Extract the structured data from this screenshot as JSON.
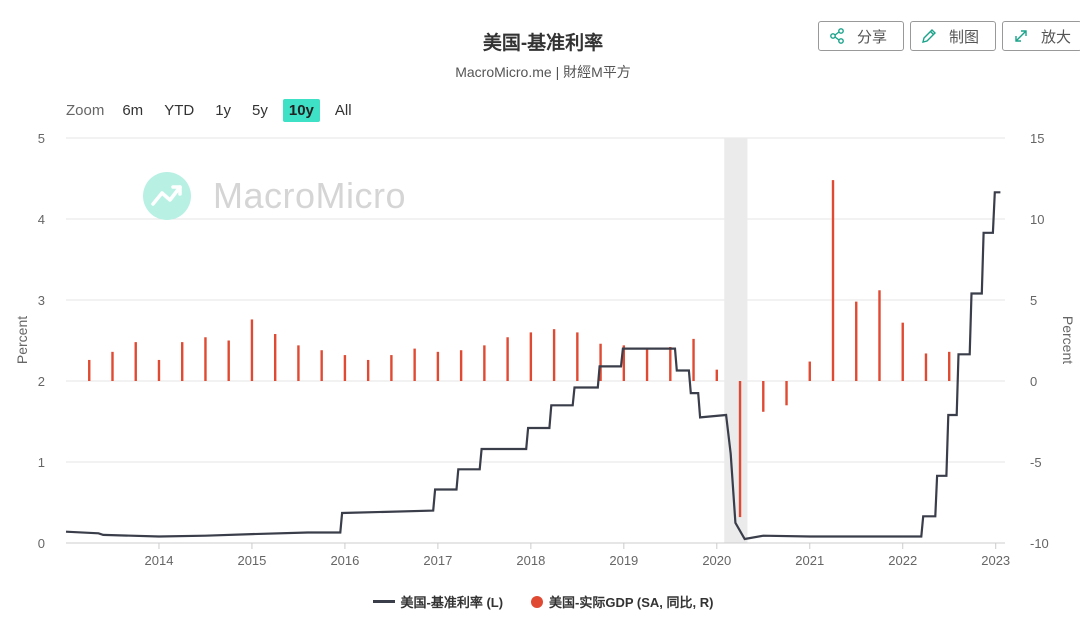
{
  "header": {
    "title": "美国-基准利率",
    "subtitle": "MacroMicro.me | 財經M平方"
  },
  "toolbar": {
    "share_label": "分享",
    "draw_label": "制图",
    "zoom_label": "放大"
  },
  "range_selector": {
    "label": "Zoom",
    "options": [
      "6m",
      "YTD",
      "1y",
      "5y",
      "10y",
      "All"
    ],
    "active": "10y"
  },
  "watermark": {
    "text": "MacroMicro"
  },
  "legend": {
    "rate_label": "美国-基准利率 (L)",
    "gdp_label": "美国-实际GDP (SA, 同比, R)"
  },
  "colors": {
    "rate_line": "#3a3d4a",
    "gdp_bar": "#e04a32",
    "active_range": "#3ee0c6",
    "recession_band": "#ebebeb"
  },
  "chart_data": {
    "type": "line",
    "x_range": [
      2013.0,
      2023.1
    ],
    "x_ticks": [
      "2014",
      "2015",
      "2016",
      "2017",
      "2018",
      "2019",
      "2020",
      "2021",
      "2022",
      "2023"
    ],
    "y_left": {
      "label": "Percent",
      "ylim": [
        0,
        5
      ],
      "ticks": [
        "0",
        "1",
        "2",
        "3",
        "4",
        "5"
      ]
    },
    "y_right": {
      "label": "Percent",
      "ylim": [
        -10,
        15
      ],
      "ticks": [
        "-10",
        "-5",
        "0",
        "5",
        "10",
        "15"
      ]
    },
    "grid": true,
    "recession_shading": {
      "start": 2020.08,
      "end": 2020.33
    },
    "series": [
      {
        "name": "美国-基准利率 (L)",
        "type": "step-line",
        "axis": "left",
        "points": [
          [
            2013.0,
            0.14
          ],
          [
            2013.35,
            0.12
          ],
          [
            2013.4,
            0.1
          ],
          [
            2014.0,
            0.08
          ],
          [
            2014.5,
            0.09
          ],
          [
            2015.0,
            0.11
          ],
          [
            2015.6,
            0.13
          ],
          [
            2015.95,
            0.13
          ],
          [
            2015.97,
            0.37
          ],
          [
            2016.95,
            0.4
          ],
          [
            2016.97,
            0.66
          ],
          [
            2017.2,
            0.66
          ],
          [
            2017.22,
            0.91
          ],
          [
            2017.45,
            0.91
          ],
          [
            2017.47,
            1.16
          ],
          [
            2017.95,
            1.16
          ],
          [
            2017.97,
            1.42
          ],
          [
            2018.2,
            1.42
          ],
          [
            2018.22,
            1.7
          ],
          [
            2018.45,
            1.7
          ],
          [
            2018.47,
            1.92
          ],
          [
            2018.72,
            1.92
          ],
          [
            2018.74,
            2.18
          ],
          [
            2018.97,
            2.18
          ],
          [
            2018.99,
            2.4
          ],
          [
            2019.55,
            2.4
          ],
          [
            2019.57,
            2.13
          ],
          [
            2019.7,
            2.13
          ],
          [
            2019.72,
            1.85
          ],
          [
            2019.8,
            1.85
          ],
          [
            2019.82,
            1.55
          ],
          [
            2020.1,
            1.58
          ],
          [
            2020.15,
            1.1
          ],
          [
            2020.2,
            0.25
          ],
          [
            2020.3,
            0.05
          ],
          [
            2020.5,
            0.09
          ],
          [
            2021.0,
            0.08
          ],
          [
            2021.5,
            0.08
          ],
          [
            2022.2,
            0.08
          ],
          [
            2022.22,
            0.33
          ],
          [
            2022.35,
            0.33
          ],
          [
            2022.37,
            0.83
          ],
          [
            2022.47,
            0.83
          ],
          [
            2022.49,
            1.58
          ],
          [
            2022.58,
            1.58
          ],
          [
            2022.6,
            2.33
          ],
          [
            2022.72,
            2.33
          ],
          [
            2022.74,
            3.08
          ],
          [
            2022.85,
            3.08
          ],
          [
            2022.87,
            3.83
          ],
          [
            2022.97,
            3.83
          ],
          [
            2022.99,
            4.33
          ],
          [
            2023.05,
            4.33
          ]
        ]
      },
      {
        "name": "美国-实际GDP (SA, 同比, R)",
        "type": "bar",
        "axis": "right",
        "points": [
          [
            2013.25,
            1.3
          ],
          [
            2013.5,
            1.8
          ],
          [
            2013.75,
            2.4
          ],
          [
            2014.0,
            1.3
          ],
          [
            2014.25,
            2.4
          ],
          [
            2014.5,
            2.7
          ],
          [
            2014.75,
            2.5
          ],
          [
            2015.0,
            3.8
          ],
          [
            2015.25,
            2.9
          ],
          [
            2015.5,
            2.2
          ],
          [
            2015.75,
            1.9
          ],
          [
            2016.0,
            1.6
          ],
          [
            2016.25,
            1.3
          ],
          [
            2016.5,
            1.6
          ],
          [
            2016.75,
            2.0
          ],
          [
            2017.0,
            1.8
          ],
          [
            2017.25,
            1.9
          ],
          [
            2017.5,
            2.2
          ],
          [
            2017.75,
            2.7
          ],
          [
            2018.0,
            3.0
          ],
          [
            2018.25,
            3.2
          ],
          [
            2018.5,
            3.0
          ],
          [
            2018.75,
            2.3
          ],
          [
            2019.0,
            2.2
          ],
          [
            2019.25,
            2.0
          ],
          [
            2019.5,
            2.1
          ],
          [
            2019.75,
            2.6
          ],
          [
            2020.0,
            0.7
          ],
          [
            2020.25,
            -8.4
          ],
          [
            2020.5,
            -1.9
          ],
          [
            2020.75,
            -1.5
          ],
          [
            2021.0,
            1.2
          ],
          [
            2021.25,
            12.4
          ],
          [
            2021.5,
            4.9
          ],
          [
            2021.75,
            5.6
          ],
          [
            2022.0,
            3.6
          ],
          [
            2022.25,
            1.7
          ],
          [
            2022.5,
            1.8
          ]
        ]
      }
    ]
  }
}
